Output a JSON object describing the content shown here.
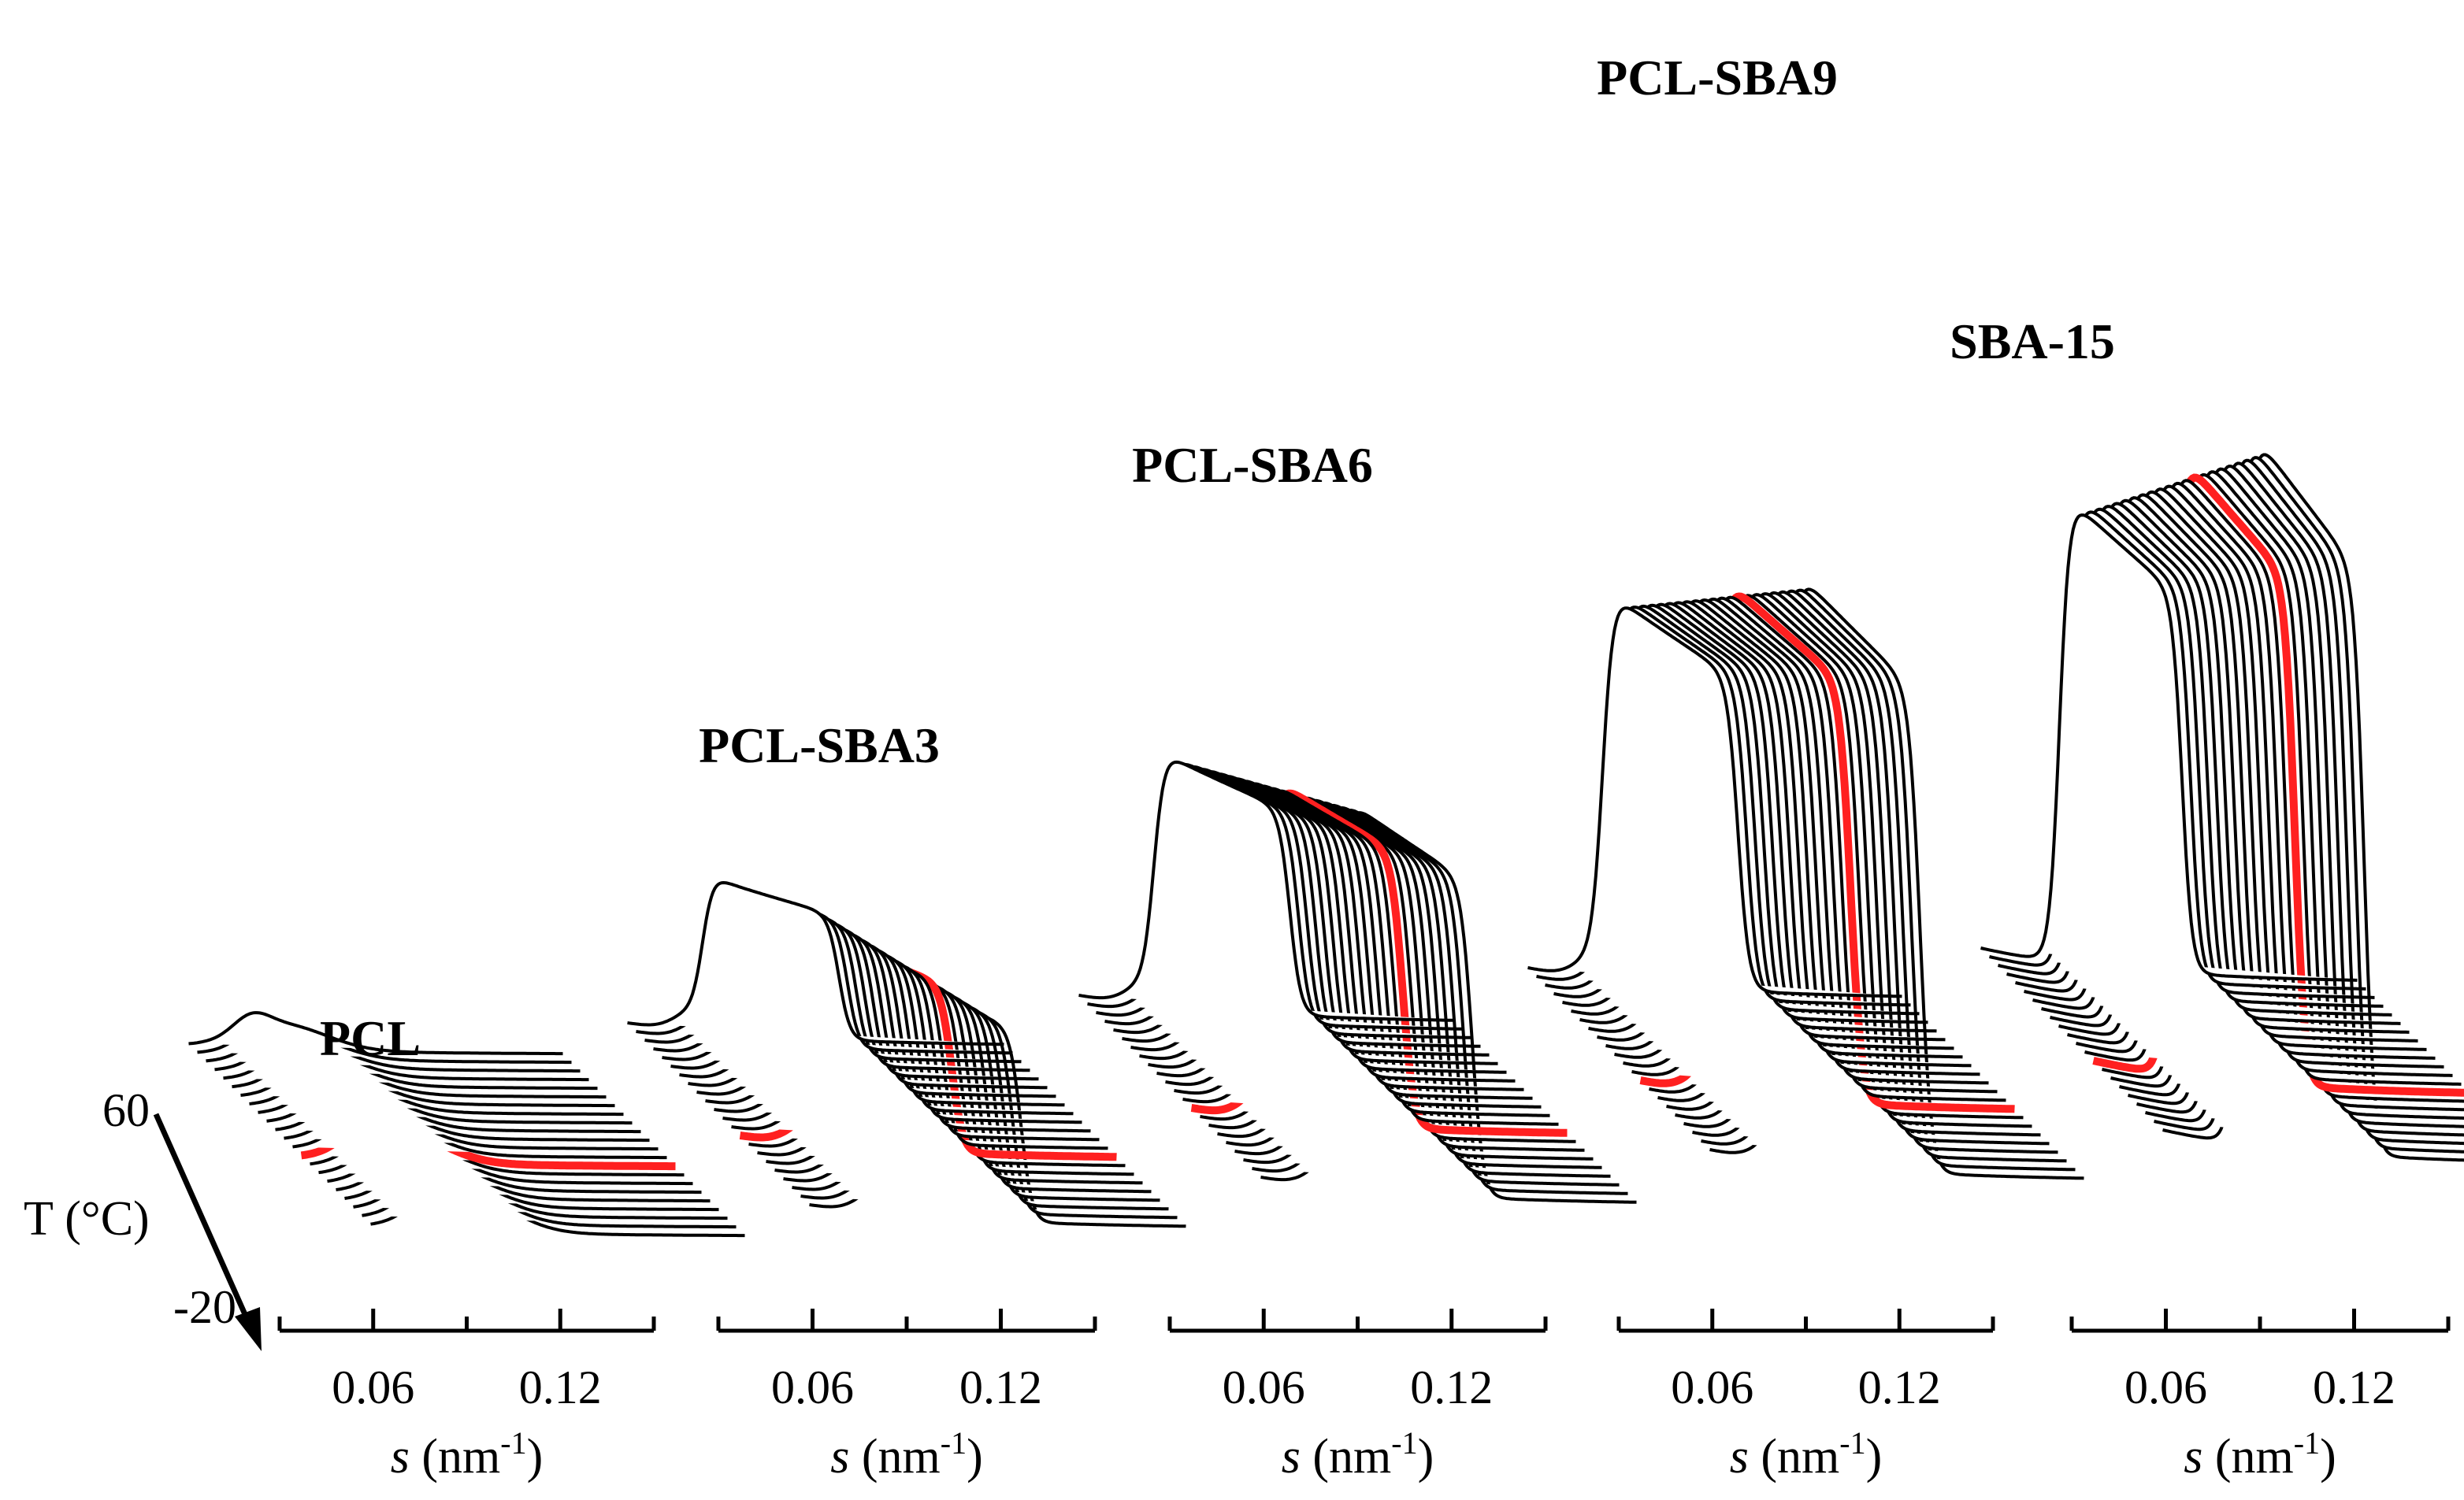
{
  "chart_data": {
    "type": "line",
    "layout": "waterfall",
    "temperature_axis": {
      "label": "T (°C)",
      "max_label": "60",
      "min_label": "-20",
      "range": [
        -20,
        60
      ],
      "traces_per_panel": 22
    },
    "x_axis": {
      "label_var": "s",
      "label_unit": " (nm",
      "label_exp": "-1",
      "label_close": ")",
      "ticks": [
        "0.06",
        "0.12"
      ],
      "range": [
        0.03,
        0.15
      ]
    },
    "highlight_color": "#ff2020",
    "trace_color": "#000000",
    "series": [
      {
        "name": "PCL",
        "peak_s": 0.06,
        "peak_height": 0.1,
        "width": 0.02,
        "background": 0.02,
        "shoulder_s": 0.05,
        "shoulder_height": 0.04
      },
      {
        "name": "PCL-SBA3",
        "peak_s": 0.065,
        "peak_height": 0.58,
        "width": 0.005,
        "background": 0.06,
        "shoulder_s": 0.05,
        "shoulder_height": 0.04
      },
      {
        "name": "PCL-SBA6",
        "peak_s": 0.065,
        "peak_height": 0.95,
        "width": 0.005,
        "background": 0.07,
        "shoulder_s": 0.05,
        "shoulder_height": 0.04
      },
      {
        "name": "PCL-SBA9",
        "peak_s": 0.065,
        "peak_height": 1.45,
        "width": 0.005,
        "background": 0.08,
        "shoulder_s": 0.05,
        "shoulder_height": 0.04
      },
      {
        "name": "SBA-15",
        "peak_s": 0.065,
        "peak_height": 1.75,
        "width": 0.0045,
        "background": 0.09,
        "shoulder_s": 0.05,
        "shoulder_height": 0.0
      }
    ]
  }
}
